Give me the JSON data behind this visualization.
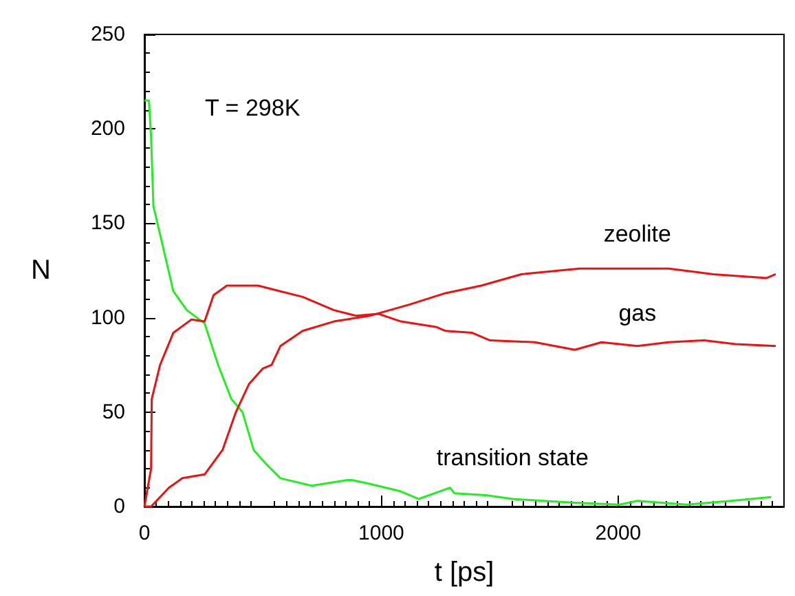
{
  "chart_data": {
    "type": "line",
    "xlabel": "t [ps]",
    "ylabel": "N",
    "xlim": [
      0,
      2700
    ],
    "xticks": [
      0,
      1000,
      2000
    ],
    "ylim": [
      0,
      250
    ],
    "yticks": [
      0,
      50,
      100,
      150,
      200,
      250
    ],
    "grid": false,
    "marker": "none",
    "series": [
      {
        "name": "transition state",
        "color": "#22ee22",
        "x": [
          0,
          19,
          28,
          38,
          85,
          122,
          179,
          254,
          311,
          367,
          414,
          461,
          518,
          574,
          706,
          857,
          876,
          951,
          1083,
          1158,
          1290,
          1309,
          1441,
          1554,
          1817,
          2006,
          2081,
          2290,
          2476,
          2646
        ],
        "values": [
          215,
          215,
          196,
          159,
          134,
          114,
          104,
          97,
          75,
          57,
          50,
          30,
          22,
          15,
          11,
          14,
          14,
          12,
          8,
          4,
          10,
          7,
          6,
          4,
          2,
          1,
          3,
          1,
          3,
          5
        ]
      },
      {
        "name": "gas",
        "color": "#ee1111",
        "x": [
          0,
          28,
          31,
          66,
          122,
          198,
          254,
          292,
          348,
          480,
          574,
          668,
          800,
          894,
          989,
          1083,
          1234,
          1271,
          1384,
          1459,
          1648,
          1817,
          1930,
          2081,
          2213,
          2363,
          2495,
          2665
        ],
        "values": [
          0,
          20,
          57,
          75,
          92,
          99,
          98,
          112,
          117,
          117,
          114,
          111,
          104,
          101,
          102,
          98,
          95,
          93,
          92,
          88,
          87,
          83,
          87,
          85,
          87,
          88,
          86,
          85
        ]
      },
      {
        "name": "zeolite",
        "color": "#ee1111",
        "x": [
          0,
          28,
          104,
          160,
          254,
          330,
          386,
          442,
          499,
          537,
          574,
          668,
          800,
          951,
          1120,
          1271,
          1422,
          1591,
          1836,
          2081,
          2213,
          2401,
          2627,
          2665
        ],
        "values": [
          0,
          0,
          10,
          15,
          17,
          30,
          50,
          65,
          73,
          75,
          85,
          93,
          98,
          101,
          107,
          113,
          117,
          123,
          126,
          126,
          126,
          123,
          121,
          123
        ]
      }
    ],
    "annotations": [
      "T = 298K"
    ]
  }
}
